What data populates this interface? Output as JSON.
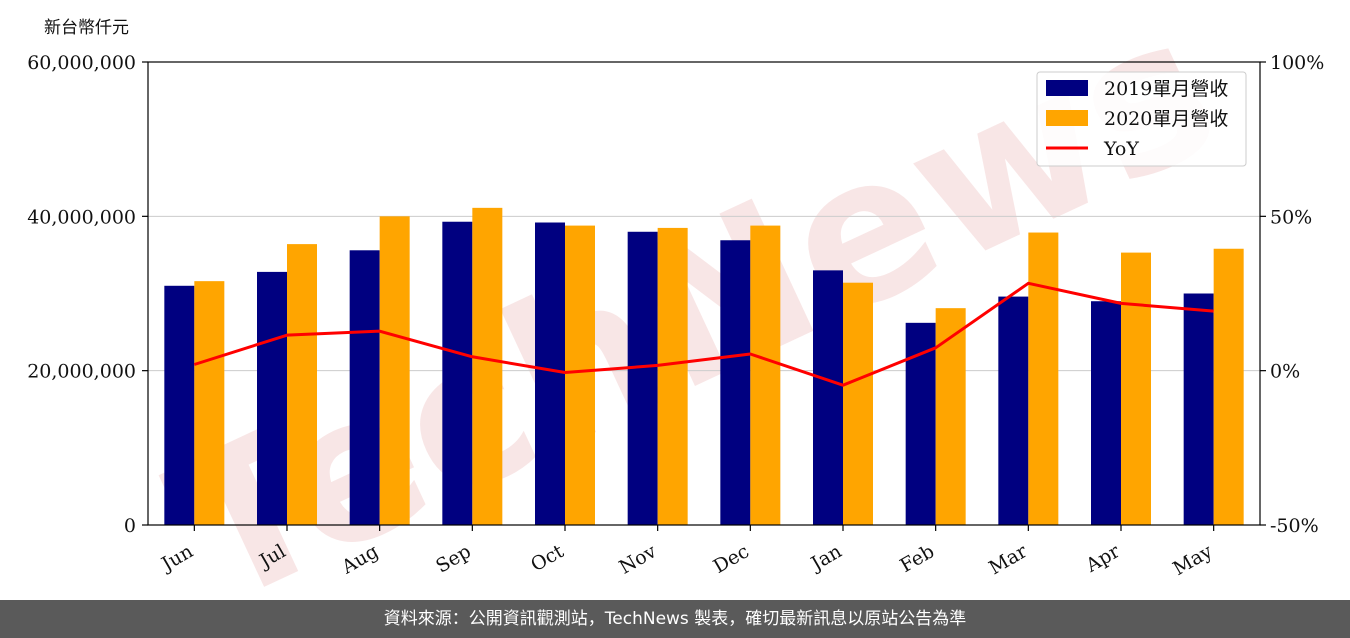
{
  "chart_data": {
    "type": "bar",
    "unit_label": "新台幣仟元",
    "categories": [
      "Jun",
      "Jul",
      "Aug",
      "Sep",
      "Oct",
      "Nov",
      "Dec",
      "Jan",
      "Feb",
      "Mar",
      "Apr",
      "May"
    ],
    "series": [
      {
        "name": "2019單月營收",
        "type": "bar",
        "color": "#000080",
        "axis": "left",
        "values": [
          31000000,
          32800000,
          35600000,
          39300000,
          39200000,
          38000000,
          36900000,
          33000000,
          26200000,
          29600000,
          29000000,
          30000000
        ]
      },
      {
        "name": "2020單月營收",
        "type": "bar",
        "color": "#FFA500",
        "axis": "left",
        "values": [
          31600000,
          36400000,
          40000000,
          41100000,
          38800000,
          38500000,
          38800000,
          31400000,
          28100000,
          37900000,
          35300000,
          35800000
        ]
      },
      {
        "name": "YoY",
        "type": "line",
        "color": "#FF0000",
        "axis": "right",
        "values": [
          2,
          11.5,
          12.8,
          4.5,
          -0.6,
          1.7,
          5.4,
          -4.7,
          7.4,
          28.3,
          21.8,
          19.3
        ]
      }
    ],
    "y_left": {
      "ylim": [
        0,
        60000000
      ],
      "ticks": [
        "0",
        "20,000,000",
        "40,000,000",
        "60,000,000"
      ],
      "tick_values": [
        0,
        20000000,
        40000000,
        60000000
      ]
    },
    "y_right": {
      "ylim": [
        -50,
        100
      ],
      "ticks": [
        "-50%",
        "0%",
        "50%",
        "100%"
      ],
      "tick_values": [
        -50,
        0,
        50,
        100
      ]
    },
    "grid": "horizontal",
    "legend_position": "top-right"
  },
  "watermark": "TechNews",
  "footer_text": "資料來源：公開資訊觀測站，TechNews 製表，確切最新訊息以原站公告為準"
}
